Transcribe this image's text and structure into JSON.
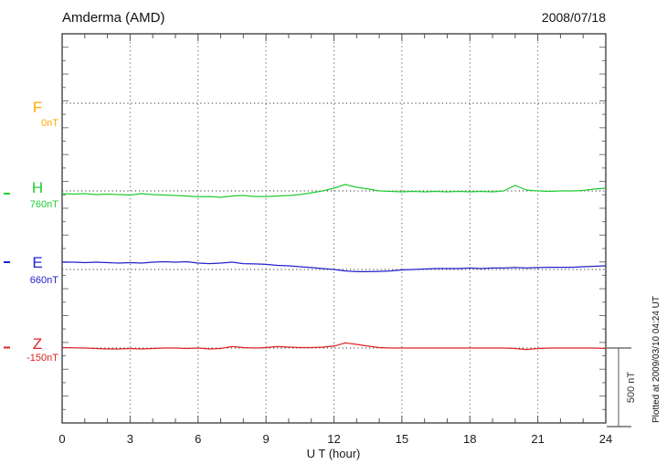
{
  "chart_data": {
    "type": "line",
    "title": "Amderma (AMD)",
    "date": "2008/07/18",
    "xlabel": "U T (hour)",
    "x_range": [
      0,
      24
    ],
    "x_ticks": [
      0,
      3,
      6,
      9,
      12,
      15,
      18,
      21,
      24
    ],
    "x_minor_step": 1,
    "grid": "dotted vertical lines every 3 hours, dotted horizontal baseline per component",
    "scale_bar": {
      "label": "500 nT",
      "span_nT": 500
    },
    "plotted_at": "Plotted at 2009/03/10 04:24 UT",
    "ylabel": "",
    "series": [
      {
        "name": "F",
        "baseline_label": "0nT",
        "baseline_nT": 0,
        "color": "#FFAA00",
        "x_step": 0.5,
        "offsets_nT": []
      },
      {
        "name": "H",
        "baseline_label": "760nT",
        "baseline_nT": 760,
        "color": "#22CC33",
        "x_step": 0.5,
        "offsets_nT": [
          -17,
          -20,
          -17,
          -23,
          -20,
          -23,
          -26,
          -17,
          -23,
          -26,
          -29,
          -32,
          -37,
          -35,
          -40,
          -32,
          -29,
          -35,
          -35,
          -32,
          -29,
          -23,
          -12,
          0,
          17,
          40,
          23,
          12,
          0,
          -3,
          -6,
          -3,
          -6,
          -3,
          -6,
          -3,
          -6,
          -3,
          -6,
          0,
          35,
          6,
          0,
          -3,
          0,
          0,
          3,
          12,
          17
        ]
      },
      {
        "name": "E",
        "baseline_label": "660nT",
        "baseline_nT": 660,
        "color": "#2222CC",
        "x_step": 0.5,
        "offsets_nT": [
          46,
          46,
          43,
          46,
          43,
          40,
          43,
          40,
          46,
          49,
          46,
          49,
          40,
          37,
          40,
          46,
          37,
          35,
          32,
          26,
          23,
          17,
          12,
          6,
          0,
          -9,
          -14,
          -14,
          -12,
          -9,
          -3,
          0,
          3,
          6,
          6,
          6,
          9,
          6,
          9,
          9,
          12,
          9,
          12,
          14,
          14,
          14,
          17,
          20,
          23
        ]
      },
      {
        "name": "Z",
        "baseline_label": "-150nT",
        "baseline_nT": -150,
        "color": "#DD2222",
        "x_step": 0.5,
        "offsets_nT": [
          3,
          2,
          0,
          -3,
          -6,
          -6,
          -3,
          -6,
          -3,
          0,
          0,
          -3,
          0,
          -6,
          -3,
          9,
          3,
          0,
          3,
          9,
          6,
          3,
          3,
          6,
          12,
          32,
          23,
          12,
          3,
          0,
          0,
          0,
          0,
          0,
          0,
          0,
          0,
          0,
          0,
          0,
          -3,
          -9,
          -3,
          0,
          0,
          0,
          0,
          0,
          -3
        ]
      }
    ]
  }
}
